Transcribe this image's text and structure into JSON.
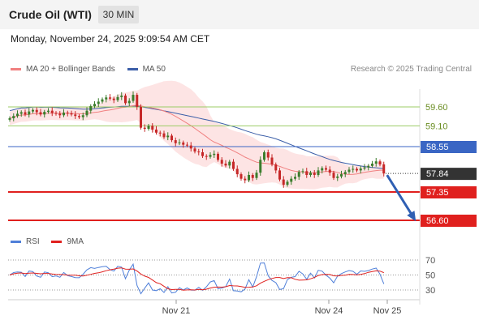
{
  "header": {
    "title": "Crude Oil (WTI)",
    "timeframe": "30 MIN"
  },
  "timestamp": "Monday, November 24, 2025 9:09:54 AM CET",
  "legend": {
    "ma20_label": "MA 20 + Bollinger Bands",
    "ma20_color": "#f08080",
    "ma50_label": "MA 50",
    "ma50_color": "#3b5ea8"
  },
  "credit": "Research © 2025 Trading Central",
  "rsi_legend": {
    "rsi_label": "RSI",
    "rsi_color": "#4f7fd9",
    "ma_label": "9MA",
    "ma_color": "#e0201e"
  },
  "chart_data": [
    {
      "type": "candlestick",
      "title": "Crude Oil (WTI)",
      "x_ticks": [
        "Nov 21",
        "Nov 24",
        "Nov 25"
      ],
      "horizontal_levels": [
        {
          "label": "59.60",
          "value": 59.6,
          "color": "#9ccc65",
          "style": "resistance"
        },
        {
          "label": "59.10",
          "value": 59.1,
          "color": "#9ccc65",
          "style": "resistance"
        },
        {
          "label": "58.55",
          "value": 58.55,
          "color": "#3a66c4",
          "style": "pivot"
        },
        {
          "label": "57.84",
          "value": 57.84,
          "color": "#333333",
          "style": "last"
        },
        {
          "label": "57.35",
          "value": 57.35,
          "color": "#e0201e",
          "style": "support"
        },
        {
          "label": "56.60",
          "value": 56.6,
          "color": "#e0201e",
          "style": "support"
        }
      ],
      "closes": [
        59.3,
        59.36,
        59.42,
        59.46,
        59.4,
        59.48,
        59.52,
        59.46,
        59.4,
        59.47,
        59.5,
        59.44,
        59.42,
        59.38,
        59.45,
        59.43,
        59.4,
        59.36,
        59.33,
        59.38,
        59.5,
        59.62,
        59.68,
        59.74,
        59.8,
        59.85,
        59.82,
        59.78,
        59.86,
        59.9,
        59.7,
        59.76,
        59.92,
        59.6,
        59.05,
        59.02,
        59.1,
        59.0,
        58.92,
        58.9,
        58.8,
        58.84,
        58.72,
        58.64,
        58.66,
        58.6,
        58.58,
        58.5,
        58.42,
        58.4,
        58.3,
        58.28,
        58.33,
        58.36,
        58.2,
        58.1,
        58.05,
        58.15,
        57.96,
        57.82,
        57.7,
        57.66,
        57.8,
        57.72,
        57.86,
        58.2,
        58.4,
        58.26,
        58.08,
        57.92,
        57.68,
        57.54,
        57.62,
        57.7,
        57.75,
        57.88,
        57.9,
        57.8,
        57.86,
        57.8,
        57.92,
        57.98,
        57.94,
        57.86,
        57.72,
        57.76,
        57.82,
        57.88,
        57.94,
        57.96,
        57.92,
        57.97,
        58.0,
        58.04,
        58.1,
        58.16,
        58.08,
        57.84
      ],
      "ma20_note": "MA 20 with Bollinger Bands (shaded)",
      "rsi": {
        "levels": [
          70,
          50,
          30
        ],
        "ylim": [
          20,
          80
        ]
      }
    }
  ]
}
